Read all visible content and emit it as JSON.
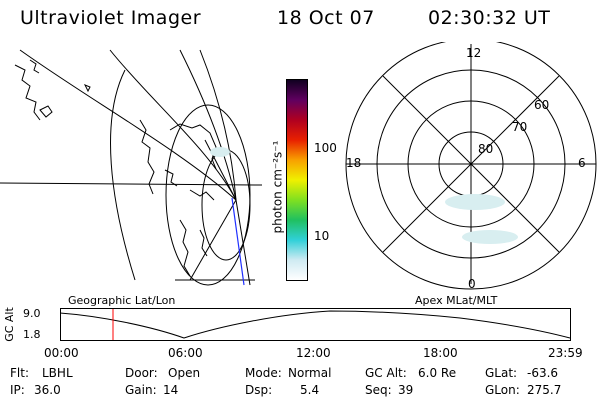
{
  "header": {
    "title": "Ultraviolet Imager",
    "date": "18 Oct 07",
    "time": "02:30:32 UT"
  },
  "colorbar": {
    "unit_label": "photon cm⁻²s⁻¹",
    "tick_labels": [
      "100",
      "10"
    ]
  },
  "polar_plot": {
    "lat_labels": [
      "80",
      "70",
      "60"
    ],
    "mlt_labels": [
      "12",
      "18",
      "6",
      "0"
    ]
  },
  "altitude_panel": {
    "left_title": "Geographic Lat/Lon",
    "right_title": "Apex MLat/MLT",
    "ylabel": "GC Alt",
    "y_ticks": [
      "9.0",
      "1.8"
    ],
    "x_ticks": [
      "00:00",
      "06:00",
      "12:00",
      "18:00",
      "23:59"
    ]
  },
  "status": {
    "row1": [
      {
        "label": "Flt:",
        "value": "LBHL"
      },
      {
        "label": "Door:",
        "value": "Open"
      },
      {
        "label": "Mode:",
        "value": "Normal"
      },
      {
        "label": "GC Alt:",
        "value": "6.0 Re"
      },
      {
        "label": "GLat:",
        "value": "-63.6"
      }
    ],
    "row2": [
      {
        "label": "IP:",
        "value": "36.0"
      },
      {
        "label": "Gain:",
        "value": "14"
      },
      {
        "label": "Dsp:",
        "value": "5.4"
      },
      {
        "label": "Seq:",
        "value": "39"
      },
      {
        "label": "GLon:",
        "value": "275.7"
      }
    ]
  },
  "colors": {
    "colorbar_stops": [
      "#ffffff",
      "#cfeaf2",
      "#30d0d8",
      "#20c060",
      "#80e020",
      "#f0f000",
      "#f8a000",
      "#e82000",
      "#b00020",
      "#600060",
      "#100020"
    ],
    "current_time_marker": "#ff0000",
    "aurora_tint": "#d8eef0"
  }
}
